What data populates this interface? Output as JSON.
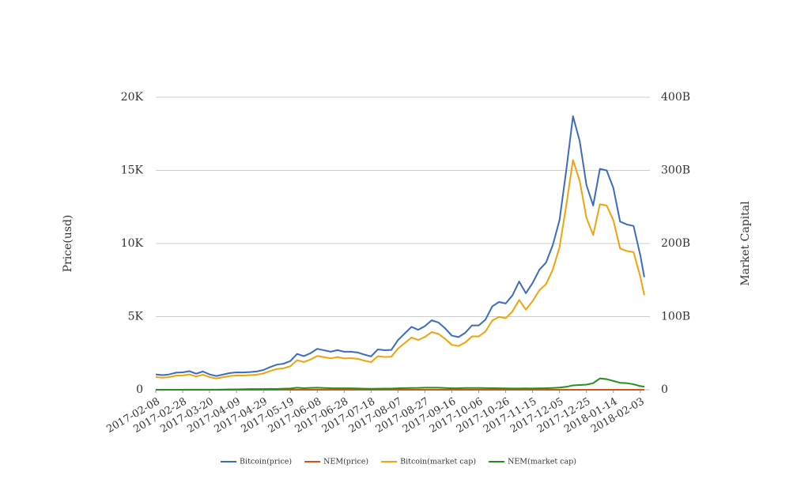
{
  "chart_data": {
    "type": "line",
    "x": [
      "2017-02-08",
      "2017-02-13",
      "2017-02-18",
      "2017-02-23",
      "2017-02-28",
      "2017-03-05",
      "2017-03-10",
      "2017-03-15",
      "2017-03-20",
      "2017-03-25",
      "2017-03-30",
      "2017-04-04",
      "2017-04-09",
      "2017-04-14",
      "2017-04-19",
      "2017-04-24",
      "2017-04-29",
      "2017-05-04",
      "2017-05-09",
      "2017-05-14",
      "2017-05-19",
      "2017-05-24",
      "2017-05-29",
      "2017-06-03",
      "2017-06-08",
      "2017-06-13",
      "2017-06-18",
      "2017-06-23",
      "2017-06-28",
      "2017-07-03",
      "2017-07-08",
      "2017-07-13",
      "2017-07-18",
      "2017-07-23",
      "2017-07-28",
      "2017-08-02",
      "2017-08-07",
      "2017-08-12",
      "2017-08-17",
      "2017-08-22",
      "2017-08-27",
      "2017-09-01",
      "2017-09-06",
      "2017-09-11",
      "2017-09-16",
      "2017-09-21",
      "2017-09-26",
      "2017-10-01",
      "2017-10-06",
      "2017-10-11",
      "2017-10-16",
      "2017-10-21",
      "2017-10-26",
      "2017-10-31",
      "2017-11-05",
      "2017-11-10",
      "2017-11-15",
      "2017-11-20",
      "2017-11-25",
      "2017-11-30",
      "2017-12-05",
      "2017-12-10",
      "2017-12-15",
      "2017-12-20",
      "2017-12-25",
      "2017-12-30",
      "2018-01-04",
      "2018-01-09",
      "2018-01-14",
      "2018-01-19",
      "2018-01-24",
      "2018-01-29",
      "2018-02-03",
      "2018-02-06"
    ],
    "series": [
      {
        "name": "Bitcoin(price)",
        "color": "#3c6bbf",
        "values": [
          1050,
          1000,
          1050,
          1170,
          1190,
          1270,
          1100,
          1250,
          1050,
          940,
          1040,
          1140,
          1190,
          1180,
          1210,
          1250,
          1350,
          1550,
          1720,
          1780,
          1960,
          2450,
          2300,
          2500,
          2800,
          2700,
          2600,
          2710,
          2600,
          2600,
          2550,
          2400,
          2280,
          2760,
          2700,
          2720,
          3400,
          3850,
          4300,
          4100,
          4350,
          4750,
          4600,
          4200,
          3700,
          3600,
          3900,
          4400,
          4400,
          4800,
          5700,
          6000,
          5900,
          6450,
          7400,
          6600,
          7300,
          8200,
          8700,
          9900,
          11600,
          15000,
          18700,
          17000,
          14000,
          12600,
          15100,
          15000,
          13800,
          11500,
          11300,
          11200,
          9200,
          7700
        ]
      },
      {
        "name": "NEM(price)",
        "color": "#d9521c",
        "values": [
          0.006,
          0.004,
          0.006,
          0.007,
          0.007,
          0.009,
          0.009,
          0.011,
          0.013,
          0.017,
          0.033,
          0.056,
          0.067,
          0.078,
          0.1,
          0.1,
          0.111,
          0.133,
          0.122,
          0.167,
          0.2,
          0.311,
          0.244,
          0.289,
          0.311,
          0.267,
          0.233,
          0.222,
          0.222,
          0.222,
          0.189,
          0.167,
          0.144,
          0.167,
          0.178,
          0.178,
          0.222,
          0.256,
          0.278,
          0.289,
          0.322,
          0.322,
          0.311,
          0.278,
          0.222,
          0.233,
          0.278,
          0.267,
          0.267,
          0.256,
          0.244,
          0.222,
          0.211,
          0.2,
          0.2,
          0.211,
          0.2,
          0.222,
          0.233,
          0.278,
          0.333,
          0.444,
          0.667,
          0.722,
          0.778,
          1.0,
          1.72,
          1.61,
          1.33,
          1.06,
          1.0,
          0.833,
          0.556,
          0.467
        ]
      },
      {
        "name": "Bitcoin(market cap)",
        "color": "#f0a30a",
        "axis": "y2",
        "values": [
          17.3,
          16.5,
          17.3,
          19.3,
          19.6,
          21.0,
          18.2,
          20.6,
          17.3,
          15.5,
          17.2,
          18.8,
          19.6,
          19.5,
          20.0,
          20.6,
          22.3,
          25.6,
          28.4,
          29.4,
          32.3,
          40.4,
          38.0,
          41.3,
          46.2,
          44.6,
          42.9,
          44.7,
          42.9,
          43.2,
          42.3,
          39.8,
          37.8,
          45.8,
          44.8,
          45.2,
          56.4,
          63.9,
          71.4,
          68.1,
          72.2,
          78.9,
          76.4,
          69.7,
          61.4,
          59.8,
          64.7,
          73.0,
          73.0,
          79.7,
          94.6,
          99.6,
          97.9,
          107.1,
          122.8,
          109.6,
          121.2,
          136.1,
          144.4,
          164.3,
          194.9,
          252.0,
          314.2,
          285.6,
          235.2,
          211.7,
          253.7,
          252.0,
          231.8,
          193.2,
          189.8,
          188.2,
          154.6,
          129.4
        ]
      },
      {
        "name": "NEM(market cap)",
        "color": "#22921d",
        "axis": "y2",
        "values": [
          0.05,
          0.04,
          0.05,
          0.06,
          0.06,
          0.08,
          0.08,
          0.1,
          0.12,
          0.15,
          0.3,
          0.5,
          0.6,
          0.7,
          0.9,
          0.9,
          1.0,
          1.2,
          1.1,
          1.5,
          1.8,
          2.8,
          2.2,
          2.6,
          2.8,
          2.4,
          2.1,
          2.0,
          2.0,
          2.0,
          1.7,
          1.5,
          1.3,
          1.5,
          1.6,
          1.6,
          2.0,
          2.3,
          2.5,
          2.6,
          2.9,
          2.9,
          2.8,
          2.5,
          2.0,
          2.1,
          2.5,
          2.4,
          2.4,
          2.3,
          2.2,
          2.0,
          1.9,
          1.8,
          1.8,
          1.9,
          1.8,
          2.0,
          2.1,
          2.5,
          3.0,
          4.0,
          6.0,
          6.5,
          7.0,
          9.0,
          15.5,
          14.5,
          12.0,
          9.5,
          9.0,
          7.5,
          5.0,
          4.2
        ]
      }
    ],
    "y_label": "Price(usd)",
    "y2_label": "Market Capital",
    "xlim": [
      "2017-02-08",
      "2018-02-09"
    ],
    "xticks": [
      "2017-02-08",
      "2017-02-28",
      "2017-03-20",
      "2017-04-09",
      "2017-04-29",
      "2017-05-19",
      "2017-06-08",
      "2017-06-28",
      "2017-07-18",
      "2017-08-07",
      "2017-08-27",
      "2017-09-16",
      "2017-10-06",
      "2017-10-26",
      "2017-11-15",
      "2017-12-05",
      "2017-12-25",
      "2018-01-14",
      "2018-02-03"
    ],
    "ylim": [
      0,
      20000
    ],
    "yticks": [
      0,
      {
        "value": 5000,
        "label": "5K"
      },
      {
        "value": 10000,
        "label": "10K"
      },
      {
        "value": 15000,
        "label": "15K"
      },
      {
        "value": 20000,
        "label": "20K"
      }
    ],
    "y2lim": [
      0,
      400
    ],
    "y2ticks": [
      0,
      {
        "value": 100,
        "label": "100B"
      },
      {
        "value": 200,
        "label": "200B"
      },
      {
        "value": 300,
        "label": "300B"
      },
      {
        "value": 400,
        "label": "400B"
      }
    ],
    "grid": true,
    "legend": "bottom"
  }
}
